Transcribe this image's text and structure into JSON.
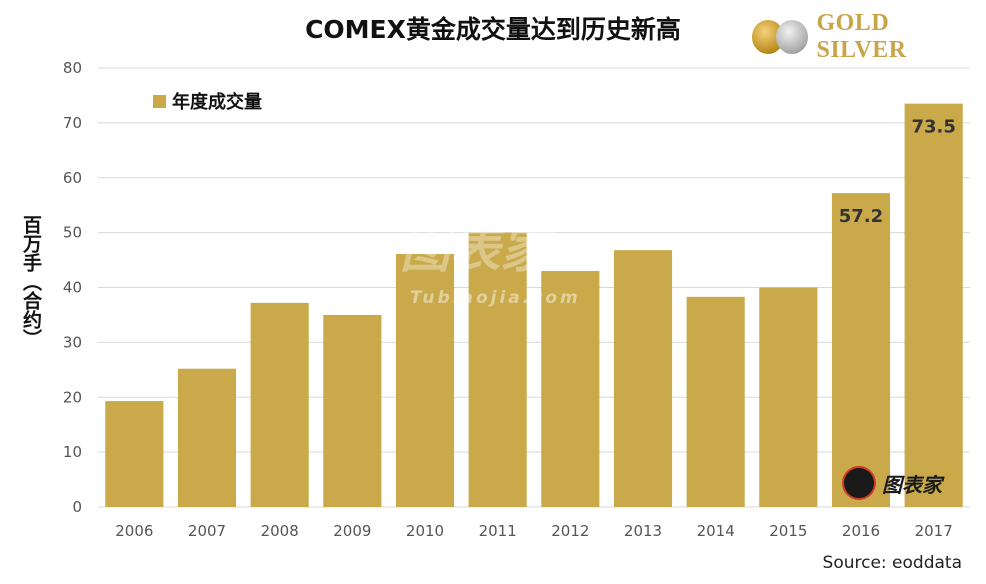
{
  "header": {
    "title": "COMEX黄金成交量达到历史新高",
    "logo_text": "GOLD SILVER"
  },
  "footer": {
    "source": "Source: eoddata"
  },
  "watermark": {
    "text": "图表家",
    "subtext": "Tubiaojia.com"
  },
  "badge": {
    "text": "图表家"
  },
  "colors": {
    "bar": "#c9a94a",
    "grid": "#d9d9d9",
    "axis_text": "#555555"
  },
  "chart_data": {
    "type": "bar",
    "title": "COMEX黄金成交量达到历史新高",
    "categories": [
      "2006",
      "2007",
      "2008",
      "2009",
      "2010",
      "2011",
      "2012",
      "2013",
      "2014",
      "2015",
      "2016",
      "2017"
    ],
    "series": [
      {
        "name": "年度成交量",
        "values": [
          19.3,
          25.2,
          37.2,
          35.0,
          46.1,
          50.0,
          43.0,
          46.8,
          38.3,
          40.0,
          57.2,
          73.5
        ]
      }
    ],
    "data_labels": [
      null,
      null,
      null,
      null,
      null,
      null,
      null,
      null,
      null,
      null,
      "57.2",
      "73.5"
    ],
    "xlabel": "",
    "ylabel": "百万手（合约）",
    "ylim": [
      0,
      80
    ],
    "yticks": [
      0,
      10,
      20,
      30,
      40,
      50,
      60,
      70,
      80
    ],
    "grid": true,
    "legend_position": "top-left"
  }
}
